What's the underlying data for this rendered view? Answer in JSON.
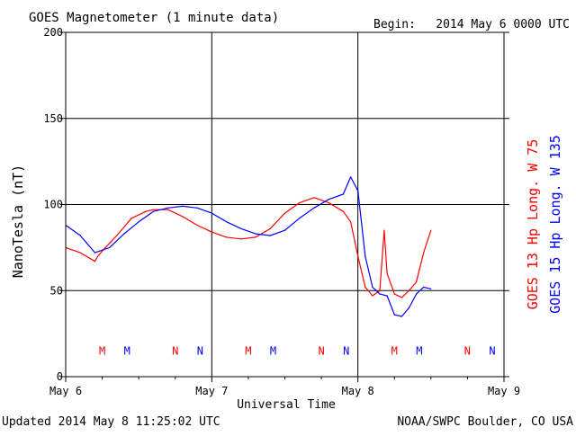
{
  "header": {
    "title": "GOES Magnetometer (1 minute data)",
    "begin_label": "Begin:",
    "begin_value": "2014 May 6 0000 UTC"
  },
  "footer": {
    "updated": "Updated 2014 May  8 11:25:02 UTC",
    "credit": "NOAA/SWPC Boulder, CO USA"
  },
  "colors": {
    "goes13": "#ff0000",
    "goes15": "#0000ff",
    "axis": "#000000",
    "background": "#ffffff"
  },
  "chart_data": {
    "type": "line",
    "title": "GOES Magnetometer (1 minute data)",
    "xlabel": "Universal Time",
    "ylabel": "NanoTesla (nT)",
    "ylim": [
      0,
      200
    ],
    "xlim_days": [
      0,
      3
    ],
    "x_ticks": [
      {
        "day": 0,
        "label": "May 6"
      },
      {
        "day": 1,
        "label": "May 7"
      },
      {
        "day": 2,
        "label": "May 8"
      },
      {
        "day": 3,
        "label": "May 9"
      }
    ],
    "y_ticks": [
      0,
      50,
      100,
      150,
      200
    ],
    "grid": true,
    "legend_position": "right, vertical",
    "series": [
      {
        "name": "GOES 13 Hp  Long. W 75",
        "color": "#ff0000",
        "x": [
          0,
          0.1,
          0.2,
          0.22,
          0.25,
          0.35,
          0.45,
          0.55,
          0.6,
          0.7,
          0.8,
          0.9,
          1.0,
          1.1,
          1.2,
          1.3,
          1.4,
          1.5,
          1.6,
          1.7,
          1.8,
          1.9,
          1.95,
          2.0,
          2.05,
          2.1,
          2.15,
          2.18,
          2.2,
          2.25,
          2.3,
          2.35,
          2.4,
          2.45,
          2.5
        ],
        "y": [
          75,
          72,
          67,
          70,
          73,
          82,
          92,
          96,
          97,
          97,
          93,
          88,
          84,
          81,
          80,
          81,
          86,
          95,
          101,
          104,
          101,
          96,
          90,
          70,
          52,
          47,
          50,
          85,
          60,
          48,
          46,
          50,
          55,
          72,
          85
        ]
      },
      {
        "name": "GOES 15 Hp  Long. W 135",
        "color": "#0000ff",
        "x": [
          0,
          0.1,
          0.2,
          0.3,
          0.4,
          0.5,
          0.6,
          0.7,
          0.8,
          0.9,
          1.0,
          1.1,
          1.2,
          1.3,
          1.4,
          1.5,
          1.6,
          1.7,
          1.8,
          1.9,
          1.95,
          2.0,
          2.05,
          2.1,
          2.15,
          2.2,
          2.25,
          2.3,
          2.35,
          2.4,
          2.45,
          2.5
        ],
        "y": [
          88,
          82,
          72,
          75,
          83,
          90,
          96,
          98,
          99,
          98,
          95,
          90,
          86,
          83,
          82,
          85,
          92,
          98,
          103,
          106,
          116,
          108,
          70,
          52,
          48,
          47,
          36,
          35,
          40,
          48,
          52,
          51
        ]
      }
    ],
    "markers": [
      {
        "label": "M",
        "series": "GOES 13 Hp  Long. W 75",
        "day": 0.25
      },
      {
        "label": "M",
        "series": "GOES 15 Hp  Long. W 135",
        "day": 0.42
      },
      {
        "label": "N",
        "series": "GOES 13 Hp  Long. W 75",
        "day": 0.75
      },
      {
        "label": "N",
        "series": "GOES 15 Hp  Long. W 135",
        "day": 0.92
      },
      {
        "label": "M",
        "series": "GOES 13 Hp  Long. W 75",
        "day": 1.25
      },
      {
        "label": "M",
        "series": "GOES 15 Hp  Long. W 135",
        "day": 1.42
      },
      {
        "label": "N",
        "series": "GOES 13 Hp  Long. W 75",
        "day": 1.75
      },
      {
        "label": "N",
        "series": "GOES 15 Hp  Long. W 135",
        "day": 1.92
      },
      {
        "label": "M",
        "series": "GOES 13 Hp  Long. W 75",
        "day": 2.25
      },
      {
        "label": "M",
        "series": "GOES 15 Hp  Long. W 135",
        "day": 2.42
      },
      {
        "label": "N",
        "series": "GOES 13 Hp  Long. W 75",
        "day": 2.75
      },
      {
        "label": "N",
        "series": "GOES 15 Hp  Long. W 135",
        "day": 2.92
      }
    ]
  }
}
